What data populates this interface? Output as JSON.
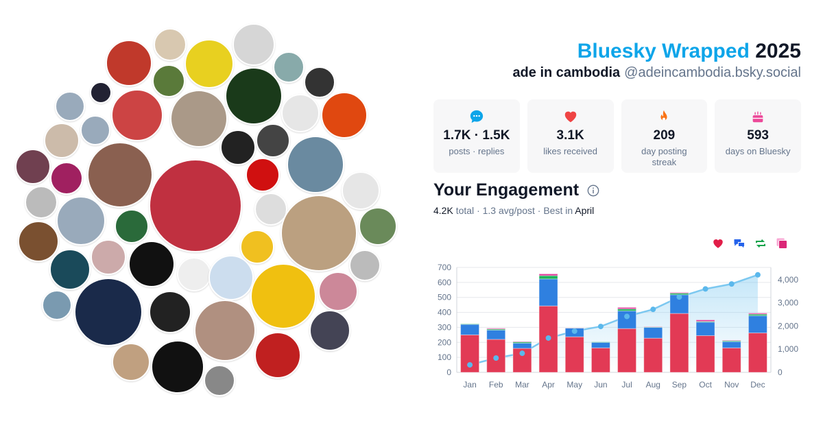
{
  "header": {
    "brand": "Bluesky Wrapped",
    "year": "2025",
    "display_name": "ade in cambodia",
    "handle": "@adeincambodia.bsky.social"
  },
  "stats": [
    {
      "icon": "chat-bubble-icon",
      "value": "1.7K · 1.5K",
      "label": "posts · replies",
      "color": "#0ea5e9"
    },
    {
      "icon": "heart-icon",
      "value": "3.1K",
      "label": "likes received",
      "color": "#ef4444"
    },
    {
      "icon": "flame-icon",
      "value": "209",
      "label": "day posting streak",
      "color": "#f97316"
    },
    {
      "icon": "cake-icon",
      "value": "593",
      "label": "days on Bluesky",
      "color": "#ec4899"
    }
  ],
  "engagement": {
    "title": "Your Engagement",
    "total": "4.2K",
    "total_label": "total",
    "avg": "· 1.3 avg/post · Best in",
    "best_month": "April"
  },
  "legend": [
    {
      "icon": "heart-icon",
      "color": "#e11d48"
    },
    {
      "icon": "reply-icon",
      "color": "#2563eb"
    },
    {
      "icon": "repost-icon",
      "color": "#16a34a"
    },
    {
      "icon": "quote-icon",
      "color": "#db2777"
    }
  ],
  "chart_data": {
    "type": "bar",
    "stacked": true,
    "categories": [
      "Jan",
      "Feb",
      "Mar",
      "Apr",
      "May",
      "Jun",
      "Jul",
      "Aug",
      "Sep",
      "Oct",
      "Nov",
      "Dec"
    ],
    "series": [
      {
        "color": "#e23a55",
        "values": [
          250,
          220,
          160,
          443,
          237,
          163,
          292,
          228,
          393,
          245,
          163,
          263
        ]
      },
      {
        "color": "#2f80e0",
        "values": [
          70,
          62,
          35,
          180,
          58,
          37,
          118,
          72,
          125,
          90,
          42,
          115
        ]
      },
      {
        "color": "#1fb35a",
        "values": [
          3,
          7,
          8,
          22,
          1,
          3,
          13,
          3,
          10,
          5,
          6,
          10
        ]
      },
      {
        "color": "#e03c9a",
        "values": [
          0,
          5,
          3,
          12,
          1,
          0,
          10,
          2,
          5,
          10,
          3,
          7
        ]
      }
    ],
    "cumulative": {
      "type": "line",
      "axis": "right",
      "color": "#7cc8f0",
      "values": [
        323,
        618,
        824,
        1481,
        1778,
        1981,
        2414,
        2719,
        3252,
        3602,
        3816,
        4211
      ]
    },
    "ylim": [
      0,
      700
    ],
    "yticks": [
      "0",
      "100",
      "200",
      "300",
      "400",
      "500",
      "600",
      "700"
    ],
    "y2lim": [
      0,
      4530
    ],
    "y2ticks": [
      "0",
      "1,000",
      "2,000",
      "3,000",
      "4,000"
    ],
    "grid": true
  }
}
